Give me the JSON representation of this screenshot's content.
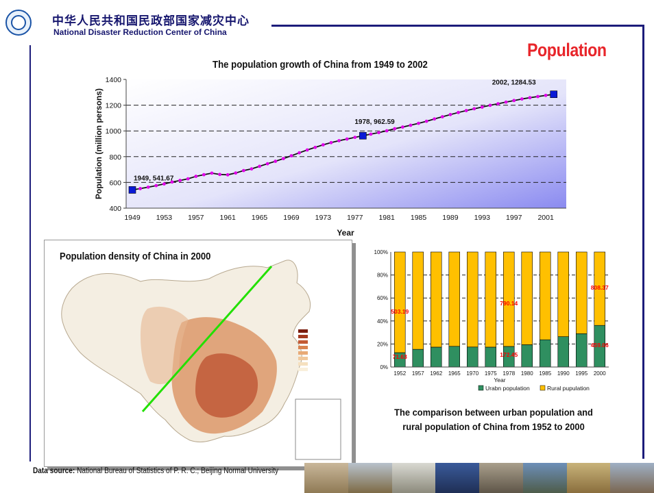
{
  "header": {
    "org_name_cn": "中华人民共和国民政部国家减灾中心",
    "org_name_en": "National Disaster Reduction Center of China",
    "page_heading": "Population"
  },
  "colors": {
    "brand": "#16166e",
    "heading": "#e8252a",
    "line_marker": "#e000e8",
    "point_marker": "#0a1ad6",
    "urban": "#2f8f60",
    "rural": "#ffc000",
    "bar_labels": "#ff0000",
    "density_line": "#22e000"
  },
  "map": {
    "title": "Population density of China in 2000"
  },
  "chart_data": [
    {
      "type": "line",
      "title": "The population growth of China from 1949 to 2002",
      "xlabel": "Year",
      "ylabel": "Population (million persons)",
      "ylim": [
        400,
        1400
      ],
      "yticks": [
        400,
        600,
        800,
        1000,
        1200,
        1400
      ],
      "xticks": [
        1949,
        1953,
        1957,
        1961,
        1965,
        1969,
        1973,
        1977,
        1981,
        1985,
        1989,
        1993,
        1997,
        2001
      ],
      "grid": "horizontal dashed",
      "x": [
        1949,
        1950,
        1951,
        1952,
        1953,
        1954,
        1955,
        1956,
        1957,
        1958,
        1959,
        1960,
        1961,
        1962,
        1963,
        1964,
        1965,
        1966,
        1967,
        1968,
        1969,
        1970,
        1971,
        1972,
        1973,
        1974,
        1975,
        1976,
        1977,
        1978,
        1979,
        1980,
        1981,
        1982,
        1983,
        1984,
        1985,
        1986,
        1987,
        1988,
        1989,
        1990,
        1991,
        1992,
        1993,
        1994,
        1995,
        1996,
        1997,
        1998,
        1999,
        2000,
        2001,
        2002
      ],
      "y": [
        541.67,
        552,
        563,
        575,
        588,
        603,
        615,
        628,
        647,
        660,
        672,
        662,
        659,
        673,
        692,
        705,
        725,
        745,
        764,
        785,
        807,
        830,
        852,
        872,
        892,
        909,
        924,
        937,
        950,
        962.59,
        975,
        987,
        1001,
        1017,
        1030,
        1044,
        1059,
        1075,
        1093,
        1110,
        1127,
        1143,
        1158,
        1172,
        1185,
        1199,
        1211,
        1224,
        1236,
        1248,
        1258,
        1267,
        1276,
        1284.53
      ],
      "annotations": [
        {
          "x": 1949,
          "y": 541.67,
          "label": "1949, 541.67"
        },
        {
          "x": 1978,
          "y": 962.59,
          "label": "1978, 962.59"
        },
        {
          "x": 2002,
          "y": 1284.53,
          "label": "2002, 1284.53"
        }
      ]
    },
    {
      "type": "bar",
      "stacked": "percent",
      "xlabel": "Year",
      "categories": [
        "1952",
        "1957",
        "1962",
        "1965",
        "1970",
        "1975",
        "1978",
        "1980",
        "1985",
        "1990",
        "1995",
        "2000"
      ],
      "series": [
        {
          "name": "Urabn population",
          "values": [
            12.5,
            15.4,
            17.3,
            18.0,
            17.4,
            17.3,
            17.9,
            19.4,
            23.7,
            26.4,
            29.0,
            36.2
          ]
        },
        {
          "name": "Rural pupulation",
          "values": [
            87.5,
            84.6,
            82.7,
            82.0,
            82.6,
            82.7,
            82.1,
            80.6,
            76.3,
            73.6,
            71.0,
            63.8
          ]
        }
      ],
      "yticks": [
        "0%",
        "20%",
        "40%",
        "60%",
        "80%",
        "100%"
      ],
      "ylim": [
        0,
        100
      ],
      "legend": "bottom",
      "data_labels": [
        {
          "category": "1952",
          "series": "urban",
          "text": "71.63"
        },
        {
          "category": "1952",
          "series": "rural",
          "text": "503.19"
        },
        {
          "category": "1978",
          "series": "urban",
          "text": "172.45"
        },
        {
          "category": "1978",
          "series": "rural",
          "text": "790.14"
        },
        {
          "category": "2000",
          "series": "urban",
          "text": "459.06"
        },
        {
          "category": "2000",
          "series": "rural",
          "text": "808.37"
        }
      ],
      "caption": [
        "The comparison between urban population and",
        "rural population of China from 1952 to 2000"
      ]
    }
  ],
  "source": {
    "prefix": "Data source:",
    "text": " National Bureau of Statistics of P. R. C.; Beijing Normal University"
  }
}
